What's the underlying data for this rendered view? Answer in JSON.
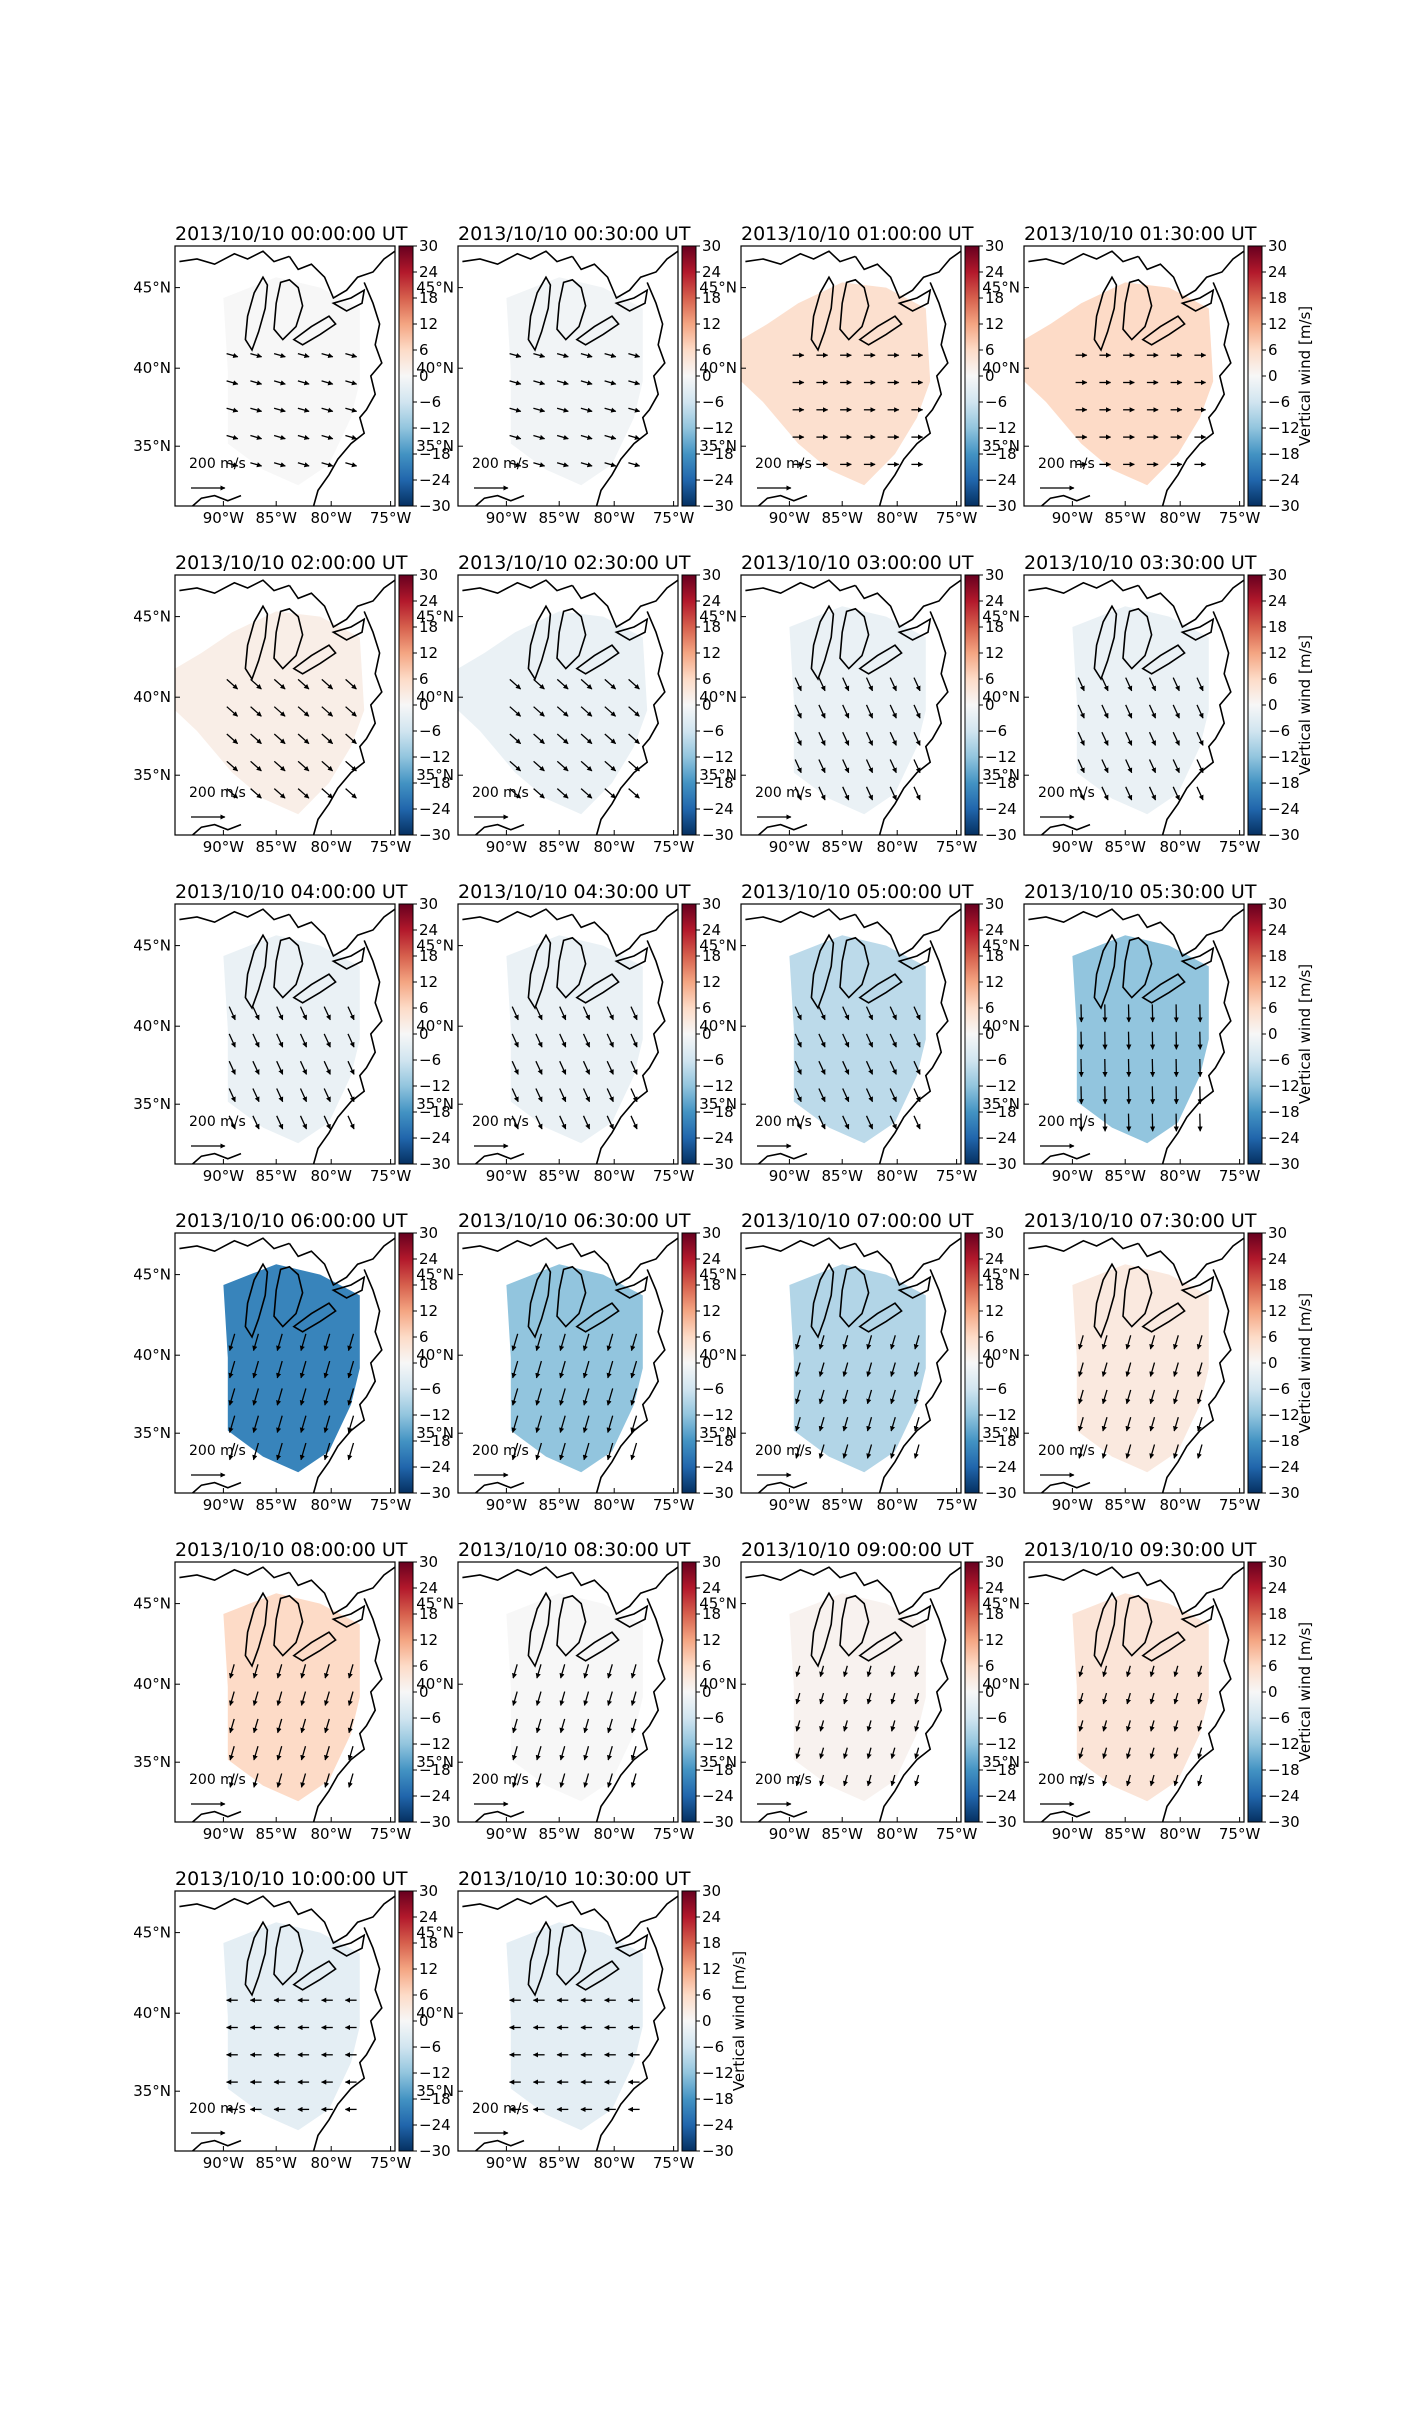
{
  "figure": {
    "colorbar_label": "Vertical wind [m/s]",
    "colorbar_ticks": [
      "30",
      "24",
      "18",
      "12",
      "6",
      "0",
      "−6",
      "−12",
      "−18",
      "−24",
      "−30"
    ],
    "lon_ticks": [
      "90°W",
      "85°W",
      "80°W",
      "75°W"
    ],
    "lat_ticks": [
      "45°N",
      "40°N",
      "35°N"
    ],
    "scale_arrow_label": "200 m/s",
    "colormap": {
      "name": "RdBu_r",
      "stops": [
        "#053061",
        "#2166ac",
        "#4393c3",
        "#92c5de",
        "#d1e5f0",
        "#f7f7f7",
        "#fddbc7",
        "#f4a582",
        "#d6604d",
        "#b2182b",
        "#67001f"
      ]
    }
  },
  "chart_data": [
    {
      "type": "heatmap",
      "title": "2013/10/10 00:00:00 UT",
      "vertical_wind": 0,
      "region": "eastern US",
      "wind_dir": "east-southeast",
      "arrow_density": "sparse"
    },
    {
      "type": "heatmap",
      "title": "2013/10/10 00:30:00 UT",
      "vertical_wind": -1,
      "region": "central-eastern US",
      "wind_dir": "east-southeast",
      "arrow_density": "sparse"
    },
    {
      "type": "heatmap",
      "title": "2013/10/10 01:00:00 UT",
      "vertical_wind": 5,
      "region": "central-eastern US",
      "wind_dir": "east",
      "arrow_density": "sparse"
    },
    {
      "type": "heatmap",
      "title": "2013/10/10 01:30:00 UT",
      "vertical_wind": 6,
      "region": "central-eastern US",
      "wind_dir": "east",
      "arrow_density": "sparse"
    },
    {
      "type": "heatmap",
      "title": "2013/10/10 02:00:00 UT",
      "vertical_wind": 2,
      "region": "central-eastern US",
      "wind_dir": "southeast",
      "arrow_density": "medium"
    },
    {
      "type": "heatmap",
      "title": "2013/10/10 02:30:00 UT",
      "vertical_wind": -2,
      "region": "central-eastern US",
      "wind_dir": "southeast",
      "arrow_density": "medium"
    },
    {
      "type": "heatmap",
      "title": "2013/10/10 03:00:00 UT",
      "vertical_wind": -2,
      "region": "eastern US",
      "wind_dir": "south-southeast",
      "arrow_density": "medium"
    },
    {
      "type": "heatmap",
      "title": "2013/10/10 03:30:00 UT",
      "vertical_wind": -2,
      "region": "eastern US",
      "wind_dir": "south-southeast",
      "arrow_density": "medium"
    },
    {
      "type": "heatmap",
      "title": "2013/10/10 04:00:00 UT",
      "vertical_wind": -2,
      "region": "eastern US",
      "wind_dir": "south-southeast",
      "arrow_density": "medium"
    },
    {
      "type": "heatmap",
      "title": "2013/10/10 04:30:00 UT",
      "vertical_wind": -2,
      "region": "eastern US",
      "wind_dir": "south-southeast",
      "arrow_density": "medium"
    },
    {
      "type": "heatmap",
      "title": "2013/10/10 05:00:00 UT",
      "vertical_wind": -8,
      "region": "eastern US",
      "wind_dir": "south-southeast",
      "arrow_density": "medium"
    },
    {
      "type": "heatmap",
      "title": "2013/10/10 05:30:00 UT",
      "vertical_wind": -12,
      "region": "eastern US",
      "wind_dir": "south",
      "arrow_density": "dense"
    },
    {
      "type": "heatmap",
      "title": "2013/10/10 06:00:00 UT",
      "vertical_wind": -20,
      "region": "eastern US",
      "wind_dir": "south-southwest",
      "arrow_density": "dense"
    },
    {
      "type": "heatmap",
      "title": "2013/10/10 06:30:00 UT",
      "vertical_wind": -12,
      "region": "eastern US",
      "wind_dir": "south-southwest",
      "arrow_density": "dense"
    },
    {
      "type": "heatmap",
      "title": "2013/10/10 07:00:00 UT",
      "vertical_wind": -9,
      "region": "eastern US",
      "wind_dir": "south-southwest",
      "arrow_density": "medium"
    },
    {
      "type": "heatmap",
      "title": "2013/10/10 07:30:00 UT",
      "vertical_wind": 3,
      "region": "eastern US",
      "wind_dir": "south-southwest",
      "arrow_density": "medium"
    },
    {
      "type": "heatmap",
      "title": "2013/10/10 08:00:00 UT",
      "vertical_wind": 6,
      "region": "eastern US",
      "wind_dir": "south-southwest",
      "arrow_density": "medium"
    },
    {
      "type": "heatmap",
      "title": "2013/10/10 08:30:00 UT",
      "vertical_wind": 0,
      "region": "eastern US",
      "wind_dir": "south-southwest",
      "arrow_density": "medium"
    },
    {
      "type": "heatmap",
      "title": "2013/10/10 09:00:00 UT",
      "vertical_wind": 1,
      "region": "eastern US",
      "wind_dir": "south-southwest",
      "arrow_density": "sparse"
    },
    {
      "type": "heatmap",
      "title": "2013/10/10 09:30:00 UT",
      "vertical_wind": 4,
      "region": "eastern US",
      "wind_dir": "south-southwest",
      "arrow_density": "sparse"
    },
    {
      "type": "heatmap",
      "title": "2013/10/10 10:00:00 UT",
      "vertical_wind": -3,
      "region": "eastern US",
      "wind_dir": "west",
      "arrow_density": "sparse"
    },
    {
      "type": "heatmap",
      "title": "2013/10/10 10:30:00 UT",
      "vertical_wind": -3,
      "region": "eastern US",
      "wind_dir": "west",
      "arrow_density": "sparse"
    }
  ]
}
